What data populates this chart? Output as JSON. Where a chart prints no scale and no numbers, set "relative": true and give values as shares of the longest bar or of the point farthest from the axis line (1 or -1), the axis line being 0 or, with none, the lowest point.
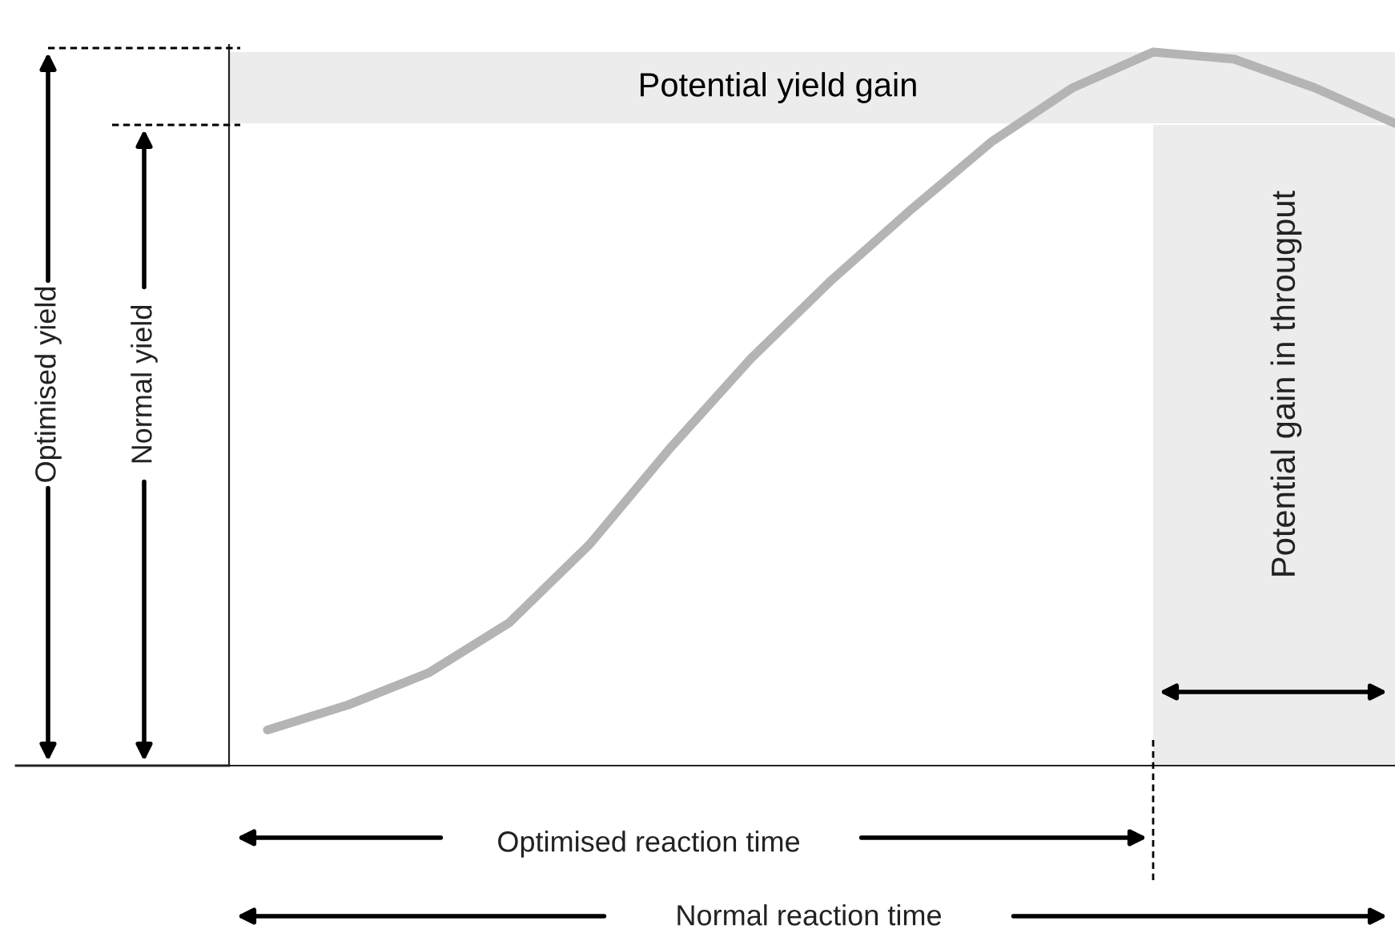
{
  "chart_data": {
    "type": "line",
    "relative": true,
    "categories": [
      null,
      null,
      null,
      null,
      null,
      null,
      null,
      null,
      null,
      null,
      null,
      null,
      null,
      null,
      null
    ],
    "series": [
      {
        "color": "#b4b4b4",
        "values": [
          0.05,
          0.085,
          0.13,
          0.2,
          0.31,
          0.445,
          0.57,
          0.68,
          0.78,
          0.875,
          0.95,
          1.0,
          0.99,
          0.95,
          0.9
        ]
      }
    ],
    "bands": [
      {
        "axis": "y",
        "from": 0.9,
        "to": 1.0,
        "label": "Potential yield gain",
        "color": "#ececec"
      }
    ],
    "annotations": [
      "Optimised yield",
      "Normal yield",
      "Optimised reaction time",
      "Normal reaction time",
      "Potential gain in througput"
    ],
    "grid": false
  }
}
